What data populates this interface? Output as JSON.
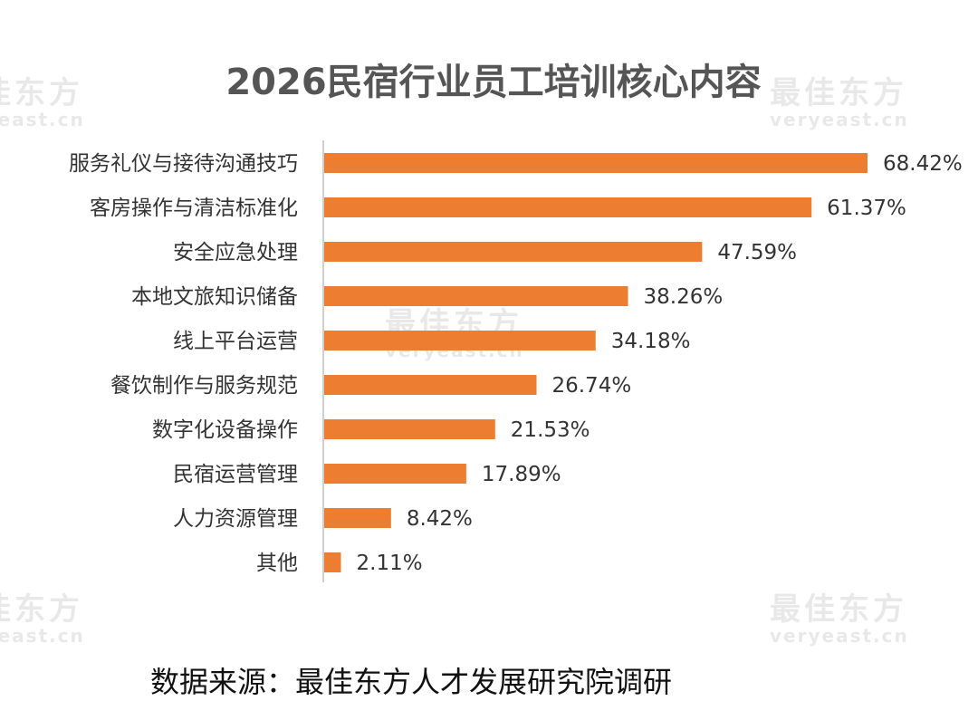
{
  "chart_data": {
    "type": "bar",
    "orientation": "horizontal",
    "title": "2026民宿行业员工培训核心内容",
    "categories": [
      "服务礼仪与接待沟通技巧",
      "客房操作与清洁标准化",
      "安全应急处理",
      "本地文旅知识储备",
      "线上平台运营",
      "餐饮制作与服务规范",
      "数字化设备操作",
      "民宿运营管理",
      "人力资源管理",
      "其他"
    ],
    "values": [
      68.42,
      61.37,
      47.59,
      38.26,
      34.18,
      26.74,
      21.53,
      17.89,
      8.42,
      2.11
    ],
    "value_labels": [
      "68.42%",
      "61.37%",
      "47.59%",
      "38.26%",
      "34.18%",
      "26.74%",
      "21.53%",
      "17.89%",
      "8.42%",
      "2.11%"
    ],
    "bar_color": "#ED7D31",
    "grid": false,
    "legend": "none"
  },
  "source_text": "数据来源：最佳东方人才发展研究院调研",
  "watermark": {
    "cn": "最佳东方",
    "en": "veryeast.cn"
  }
}
